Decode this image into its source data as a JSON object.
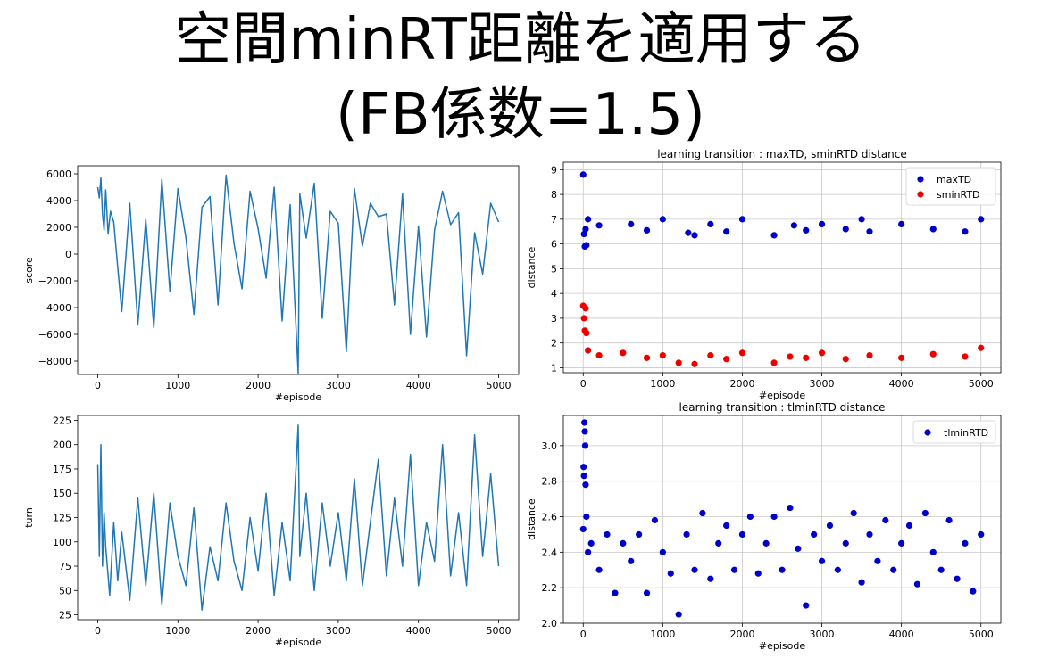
{
  "slide": {
    "title_line1": "空間minRT距離を適用する",
    "title_line2": "(FB係数=1.5)"
  },
  "chart_data": [
    {
      "id": "score",
      "type": "line",
      "title": "",
      "xlabel": "#episode",
      "ylabel": "score",
      "xlim": [
        -250,
        5250
      ],
      "ylim": [
        -9000,
        6600
      ],
      "xticks": [
        0,
        1000,
        2000,
        3000,
        4000,
        5000
      ],
      "yticks": [
        -8000,
        -6000,
        -4000,
        -2000,
        0,
        2000,
        4000,
        6000
      ],
      "grid": false,
      "series": [
        {
          "color": "#1f77b4",
          "x": [
            0,
            20,
            40,
            60,
            80,
            100,
            130,
            160,
            200,
            250,
            300,
            400,
            500,
            600,
            700,
            800,
            900,
            1000,
            1100,
            1200,
            1300,
            1400,
            1500,
            1600,
            1700,
            1800,
            1900,
            2000,
            2100,
            2200,
            2300,
            2400,
            2500,
            2520,
            2600,
            2700,
            2800,
            2900,
            3000,
            3100,
            3200,
            3300,
            3400,
            3500,
            3600,
            3700,
            3800,
            3900,
            4000,
            4100,
            4200,
            4300,
            4400,
            4500,
            4600,
            4700,
            4800,
            4900,
            5000
          ],
          "y": [
            5000,
            4200,
            5700,
            3000,
            1800,
            4800,
            1500,
            3200,
            2400,
            -1000,
            -4300,
            3800,
            -5300,
            2600,
            -5500,
            5600,
            -2800,
            4900,
            1200,
            -4500,
            3500,
            4300,
            -3800,
            5900,
            800,
            -2600,
            4700,
            1900,
            -1800,
            5000,
            -5000,
            3700,
            -8900,
            4500,
            1200,
            5300,
            -4800,
            3200,
            2300,
            -7300,
            4900,
            600,
            3800,
            2800,
            3000,
            -3800,
            4500,
            -6000,
            2100,
            -6200,
            1800,
            4700,
            2200,
            3100,
            -7600,
            1600,
            -1500,
            3800,
            2400
          ]
        }
      ]
    },
    {
      "id": "distance",
      "type": "scatter",
      "title": "learning transition : maxTD, sminRTD distance",
      "xlabel": "#episode",
      "ylabel": "distance",
      "xlim": [
        -250,
        5250
      ],
      "ylim": [
        0.8,
        9.3
      ],
      "xticks": [
        0,
        1000,
        2000,
        3000,
        4000,
        5000
      ],
      "yticks": [
        1,
        2,
        3,
        4,
        5,
        6,
        7,
        8,
        9
      ],
      "grid": true,
      "legend": "top-right",
      "series": [
        {
          "name": "maxTD",
          "color": "#0000cc",
          "x": [
            0,
            10,
            20,
            30,
            40,
            60,
            200,
            600,
            800,
            1000,
            1320,
            1400,
            1600,
            1800,
            2000,
            2400,
            2650,
            2800,
            3000,
            3300,
            3500,
            3600,
            4000,
            4400,
            4800,
            5000
          ],
          "y": [
            8.8,
            6.4,
            5.9,
            6.6,
            5.95,
            7.0,
            6.75,
            6.8,
            6.55,
            7.0,
            6.45,
            6.35,
            6.8,
            6.5,
            7.0,
            6.35,
            6.75,
            6.55,
            6.8,
            6.6,
            7.0,
            6.5,
            6.8,
            6.6,
            6.5,
            7.0
          ]
        },
        {
          "name": "sminRTD",
          "color": "#ee0000",
          "x": [
            0,
            10,
            20,
            30,
            40,
            60,
            200,
            500,
            800,
            1000,
            1200,
            1400,
            1600,
            1800,
            2000,
            2400,
            2600,
            2800,
            3000,
            3300,
            3600,
            4000,
            4400,
            4800,
            5000
          ],
          "y": [
            3.5,
            3.0,
            2.5,
            3.4,
            2.4,
            1.7,
            1.5,
            1.6,
            1.4,
            1.5,
            1.2,
            1.15,
            1.5,
            1.35,
            1.6,
            1.2,
            1.45,
            1.4,
            1.6,
            1.35,
            1.5,
            1.4,
            1.55,
            1.45,
            1.8
          ]
        }
      ]
    },
    {
      "id": "turn",
      "type": "line",
      "title": "",
      "xlabel": "#episode",
      "ylabel": "turn",
      "xlim": [
        -250,
        5250
      ],
      "ylim": [
        20,
        230
      ],
      "xticks": [
        0,
        1000,
        2000,
        3000,
        4000,
        5000
      ],
      "yticks": [
        25,
        50,
        75,
        100,
        125,
        150,
        175,
        200,
        225
      ],
      "grid": false,
      "series": [
        {
          "color": "#1f77b4",
          "x": [
            0,
            20,
            40,
            60,
            80,
            100,
            150,
            200,
            250,
            300,
            400,
            500,
            600,
            700,
            800,
            900,
            1000,
            1100,
            1200,
            1300,
            1400,
            1500,
            1600,
            1700,
            1800,
            1900,
            2000,
            2100,
            2200,
            2300,
            2400,
            2500,
            2520,
            2600,
            2700,
            2800,
            2900,
            3000,
            3100,
            3200,
            3300,
            3400,
            3500,
            3600,
            3700,
            3800,
            3900,
            4000,
            4100,
            4200,
            4300,
            4400,
            4500,
            4600,
            4700,
            4800,
            4900,
            5000
          ],
          "y": [
            180,
            85,
            200,
            75,
            130,
            95,
            45,
            120,
            60,
            110,
            40,
            145,
            55,
            150,
            35,
            140,
            85,
            55,
            135,
            30,
            95,
            60,
            140,
            80,
            50,
            125,
            70,
            150,
            45,
            120,
            60,
            220,
            85,
            150,
            50,
            140,
            75,
            130,
            60,
            165,
            55,
            120,
            185,
            65,
            145,
            75,
            190,
            55,
            120,
            80,
            200,
            65,
            130,
            55,
            210,
            85,
            170,
            75
          ]
        }
      ]
    },
    {
      "id": "tlminrtd",
      "type": "scatter",
      "title": "learning transition : tlminRTD distance",
      "xlabel": "#episode",
      "ylabel": "distance",
      "xlim": [
        -250,
        5250
      ],
      "ylim": [
        2.0,
        3.17
      ],
      "xticks": [
        0,
        1000,
        2000,
        3000,
        4000,
        5000
      ],
      "yticks": [
        2.0,
        2.2,
        2.4,
        2.6,
        2.8,
        3.0
      ],
      "grid": true,
      "legend": "top-right",
      "series": [
        {
          "name": "tlminRTD",
          "color": "#0000cc",
          "x": [
            0,
            5,
            10,
            15,
            20,
            25,
            30,
            40,
            60,
            100,
            200,
            300,
            400,
            500,
            600,
            700,
            800,
            900,
            1000,
            1100,
            1200,
            1300,
            1400,
            1500,
            1600,
            1700,
            1800,
            1900,
            2000,
            2100,
            2200,
            2300,
            2400,
            2500,
            2600,
            2700,
            2800,
            2900,
            3000,
            3100,
            3200,
            3300,
            3400,
            3500,
            3600,
            3700,
            3800,
            3900,
            4000,
            4100,
            4200,
            4300,
            4400,
            4500,
            4600,
            4700,
            4800,
            4900,
            5000
          ],
          "y": [
            2.53,
            2.88,
            2.83,
            3.13,
            3.08,
            3.0,
            2.78,
            2.6,
            2.4,
            2.45,
            2.3,
            2.5,
            2.17,
            2.45,
            2.35,
            2.5,
            2.17,
            2.58,
            2.4,
            2.28,
            2.05,
            2.5,
            2.3,
            2.62,
            2.25,
            2.45,
            2.55,
            2.3,
            2.5,
            2.6,
            2.28,
            2.45,
            2.6,
            2.3,
            2.65,
            2.42,
            2.1,
            2.5,
            2.35,
            2.55,
            2.3,
            2.45,
            2.62,
            2.23,
            2.5,
            2.35,
            2.58,
            2.3,
            2.45,
            2.55,
            2.22,
            2.62,
            2.4,
            2.3,
            2.58,
            2.25,
            2.45,
            2.18,
            2.5
          ]
        }
      ]
    }
  ]
}
